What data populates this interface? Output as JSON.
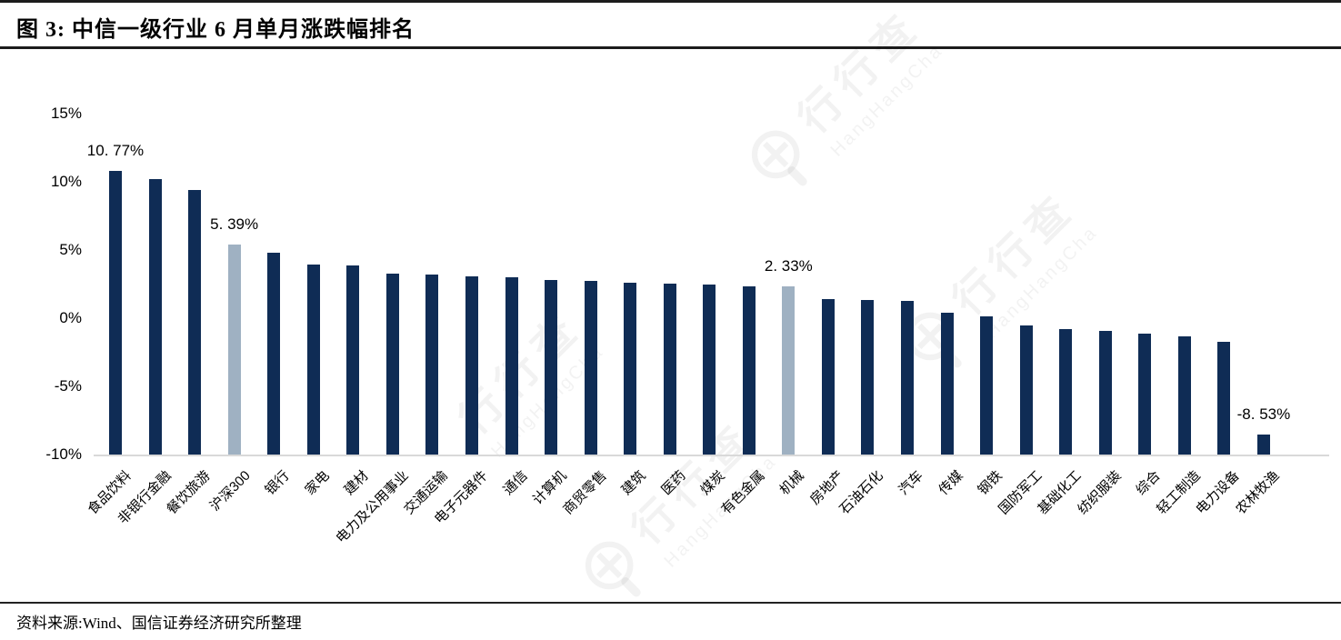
{
  "header": {
    "title": "图 3: 中信一级行业 6 月单月涨跌幅排名"
  },
  "footer": {
    "source": "资料来源:Wind、国信证券经济研究所整理"
  },
  "watermark": {
    "cn": "行行查",
    "en": "HangHangCha"
  },
  "chart_data": {
    "type": "bar",
    "title": "中信一级行业 6 月单月涨跌幅排名",
    "xlabel": "",
    "ylabel": "",
    "ylim": [
      -10,
      15
    ],
    "bar_base": -10,
    "grid": false,
    "legend": "none",
    "yticks": [
      15,
      10,
      5,
      0,
      -5,
      -10
    ],
    "ytick_labels": [
      "15%",
      "10%",
      "5%",
      "0%",
      "-5%",
      "-10%"
    ],
    "categories": [
      "食品饮料",
      "非银行金融",
      "餐饮旅游",
      "沪深300",
      "银行",
      "家电",
      "建材",
      "电力及公用事业",
      "交通运输",
      "电子元器件",
      "通信",
      "计算机",
      "商贸零售",
      "建筑",
      "医药",
      "煤炭",
      "有色金属",
      "机械",
      "房地产",
      "石油石化",
      "汽车",
      "传媒",
      "钢铁",
      "国防军工",
      "基础化工",
      "纺织服装",
      "综合",
      "轻工制造",
      "电力设备",
      "农林牧渔"
    ],
    "values": [
      10.77,
      10.2,
      9.4,
      5.39,
      4.8,
      3.95,
      3.9,
      3.3,
      3.2,
      3.05,
      3.0,
      2.8,
      2.75,
      2.6,
      2.55,
      2.5,
      2.35,
      2.33,
      1.4,
      1.35,
      1.25,
      0.4,
      0.15,
      -0.55,
      -0.8,
      -0.9,
      -1.1,
      -1.3,
      -1.7,
      -8.53
    ],
    "highlight_indices": [
      3,
      17
    ],
    "highlight_categories": [
      "沪深300",
      "机械"
    ],
    "value_labels": [
      {
        "index": 0,
        "text": "10. 77%"
      },
      {
        "index": 3,
        "text": "5. 39%"
      },
      {
        "index": 17,
        "text": "2. 33%"
      },
      {
        "index": 29,
        "text": "-8. 53%"
      }
    ],
    "colors": {
      "bar": "#0f2c55",
      "highlight": "#9fb1c2",
      "axis_line": "#d9d9d9",
      "text": "#000000"
    }
  }
}
